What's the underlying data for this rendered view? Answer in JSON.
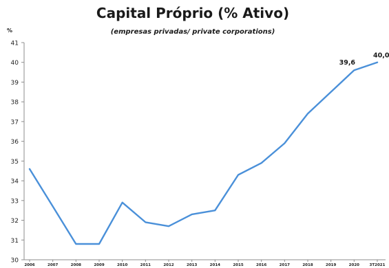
{
  "chart_data": {
    "type": "line",
    "title": "Capital Próprio (% Ativo)",
    "subtitle": "(empresas privadas/ private corporations)",
    "ylabel": "%",
    "xlabel": "",
    "ylim": [
      30,
      41
    ],
    "y_ticks": [
      "30",
      "31",
      "32",
      "33",
      "34",
      "35",
      "36",
      "37",
      "38",
      "39",
      "40",
      "41"
    ],
    "categories": [
      "2006",
      "2007",
      "2008",
      "2009",
      "2010",
      "2011",
      "2012",
      "2013",
      "2014",
      "2015",
      "2016",
      "2017",
      "2018",
      "2019",
      "2020",
      "3T2021"
    ],
    "series": [
      {
        "values": [
          34.6,
          32.7,
          30.8,
          30.8,
          32.9,
          31.9,
          31.7,
          32.3,
          32.5,
          34.3,
          34.9,
          35.9,
          37.4,
          38.5,
          39.6,
          40.0
        ],
        "color": "#4a90d9"
      }
    ],
    "data_labels": [
      {
        "index": 14,
        "text": "39,6"
      },
      {
        "index": 15,
        "text": "40,0"
      }
    ],
    "grid": false,
    "legend": "none"
  }
}
